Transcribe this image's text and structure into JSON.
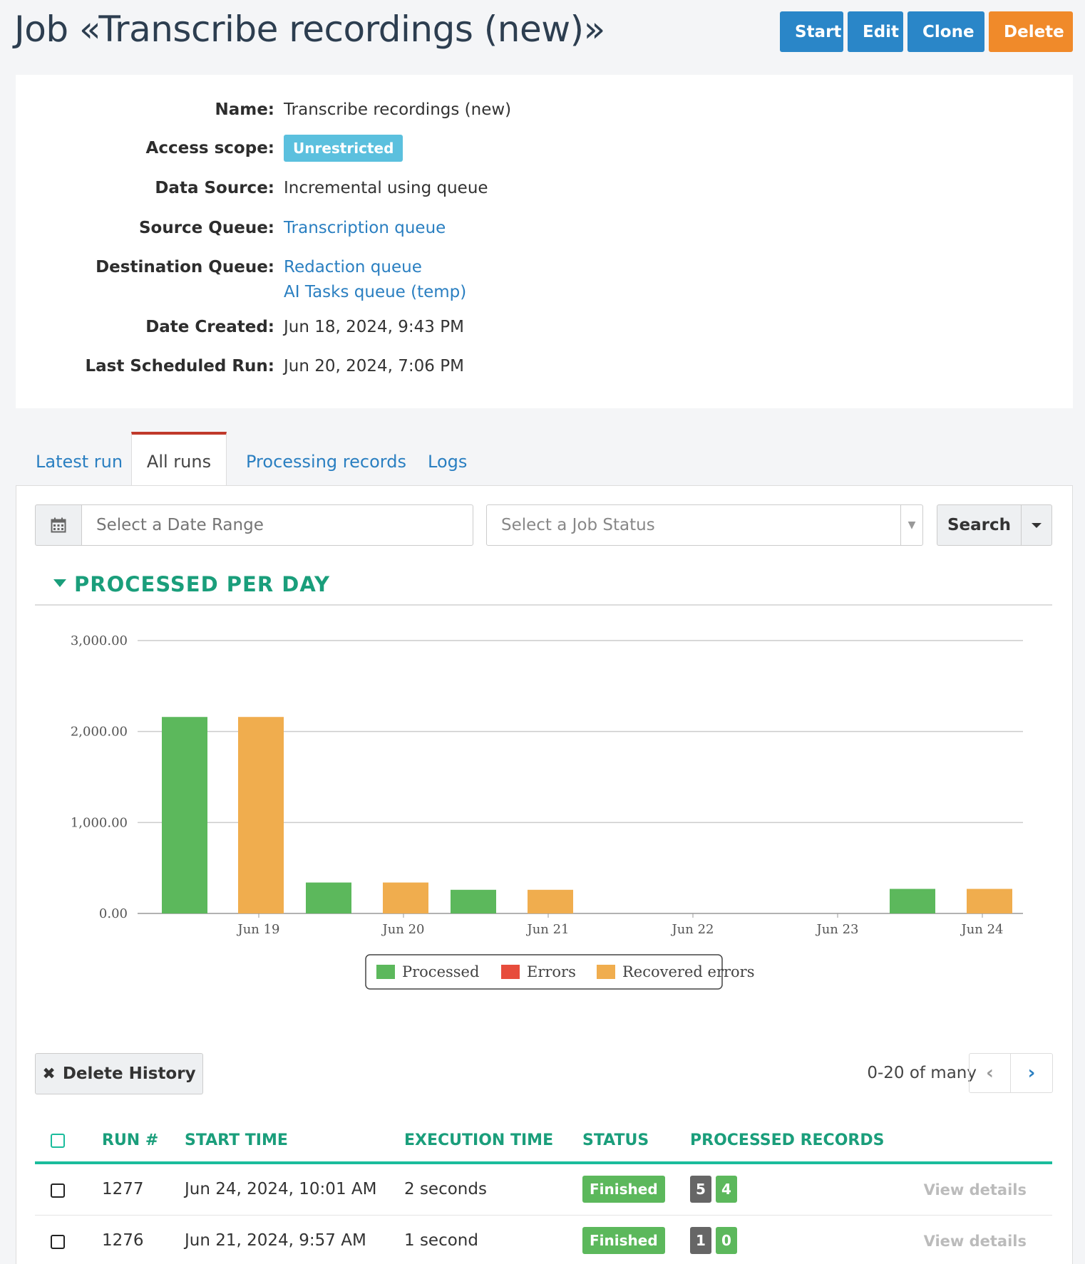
{
  "page": {
    "title": "Job «Transcribe recordings (new)»",
    "actions": {
      "start": "Start",
      "edit": "Edit",
      "clone": "Clone",
      "delete": "Delete"
    }
  },
  "info": {
    "name_label": "Name:",
    "name_value": "Transcribe recordings (new)",
    "access_label": "Access scope:",
    "access_value": "Unrestricted",
    "source_label": "Data Source:",
    "source_value": "Incremental using queue",
    "source_queue_label": "Source Queue:",
    "source_queue_value": "Transcription queue",
    "dest_queue_label": "Destination Queue:",
    "dest_queue_values": [
      "Redaction queue",
      "AI Tasks queue (temp)"
    ],
    "created_label": "Date Created:",
    "created_value": "Jun 18, 2024, 9:43 PM",
    "last_run_label": "Last Scheduled Run:",
    "last_run_value": "Jun 20, 2024, 7:06 PM"
  },
  "tabs": [
    {
      "label": "Latest run",
      "active": false
    },
    {
      "label": "All runs",
      "active": true
    },
    {
      "label": "Processing records",
      "active": false
    },
    {
      "label": "Logs",
      "active": false
    }
  ],
  "filters": {
    "date_placeholder": "Select a Date Range",
    "status_placeholder": "Select a Job Status",
    "search_label": "Search"
  },
  "section_title": "PROCESSED  PER  DAY",
  "chart_data": {
    "type": "bar",
    "categories": [
      "Jun 19",
      "Jun 20",
      "Jun 21",
      "Jun 22",
      "Jun 23",
      "Jun 24"
    ],
    "y_tick_labels": [
      "0.00",
      "1,000.00",
      "2,000.00",
      "3,000.00"
    ],
    "ylim": [
      0,
      3000
    ],
    "grid": true,
    "legend_position": "bottom",
    "series": [
      {
        "name": "Processed",
        "color": "#5cb85c",
        "values": [
          2160,
          340,
          260,
          0,
          0,
          270
        ]
      },
      {
        "name": "Errors",
        "color": "#e74c3c",
        "values": [
          0,
          0,
          0,
          0,
          0,
          0
        ]
      },
      {
        "name": "Recovered errors",
        "color": "#f0ad4e",
        "values": [
          2160,
          340,
          260,
          0,
          0,
          270
        ]
      }
    ]
  },
  "history": {
    "delete_label": "Delete History",
    "pager_text": "0-20 of many"
  },
  "table": {
    "headers": {
      "run": "RUN #",
      "start": "START TIME",
      "exec": "EXECUTION TIME",
      "status": "STATUS",
      "records": "PROCESSED RECORDS"
    },
    "rows": [
      {
        "run": "1277",
        "start": "Jun 24, 2024, 10:01 AM",
        "exec": "2 seconds",
        "status": "Finished",
        "rec_total": "5",
        "rec_ok": "4",
        "link": "View details"
      },
      {
        "run": "1276",
        "start": "Jun 21, 2024, 9:57 AM",
        "exec": "1 second",
        "status": "Finished",
        "rec_total": "1",
        "rec_ok": "0",
        "link": "View details"
      }
    ]
  }
}
